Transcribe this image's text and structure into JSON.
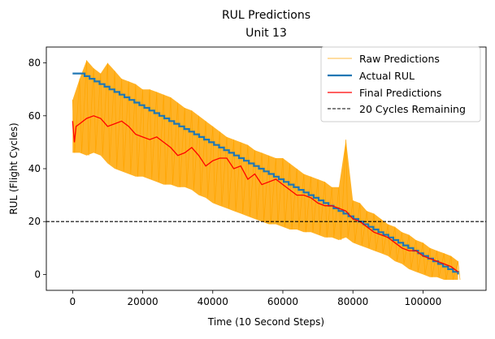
{
  "chart_data": {
    "type": "line",
    "title": "RUL Predictions",
    "subtitle": "Unit 13",
    "xlabel": "Time (10 Second Steps)",
    "ylabel": "RUL (Flight Cycles)",
    "xlim": [
      -7500,
      118000
    ],
    "ylim": [
      -6,
      86
    ],
    "xticks": [
      0,
      20000,
      40000,
      60000,
      80000,
      100000
    ],
    "xtick_labels": [
      "0",
      "20000",
      "40000",
      "60000",
      "80000",
      "100000"
    ],
    "yticks": [
      0,
      20,
      40,
      60,
      80
    ],
    "ytick_labels": [
      "0",
      "20",
      "40",
      "60",
      "80"
    ],
    "grid": false,
    "legend_position": "top-right",
    "threshold": {
      "name": "20 Cycles Remaining",
      "y": 20,
      "color": "#000000",
      "style": "dashed"
    },
    "series": [
      {
        "name": "Raw Predictions",
        "color": "#ffa500",
        "x": [
          0,
          2000,
          4000,
          6000,
          8000,
          10000,
          12000,
          14000,
          16000,
          18000,
          20000,
          22000,
          24000,
          26000,
          28000,
          30000,
          32000,
          34000,
          36000,
          38000,
          40000,
          42000,
          44000,
          46000,
          48000,
          50000,
          52000,
          54000,
          56000,
          58000,
          60000,
          62000,
          64000,
          66000,
          68000,
          70000,
          72000,
          74000,
          76000,
          78000,
          80000,
          82000,
          84000,
          86000,
          88000,
          90000,
          92000,
          94000,
          96000,
          98000,
          100000,
          102000,
          104000,
          106000,
          108000,
          110000
        ],
        "upper": [
          66,
          74,
          81,
          78,
          76,
          80,
          77,
          74,
          73,
          72,
          70,
          70,
          69,
          68,
          67,
          65,
          63,
          62,
          60,
          58,
          56,
          54,
          52,
          51,
          50,
          49,
          47,
          46,
          45,
          44,
          44,
          42,
          40,
          38,
          37,
          36,
          35,
          33,
          33,
          51,
          28,
          27,
          24,
          23,
          21,
          19,
          18,
          16,
          15,
          13,
          12,
          10,
          9,
          8,
          7,
          5
        ],
        "lower": [
          46,
          46,
          45,
          46,
          45,
          42,
          40,
          39,
          38,
          37,
          37,
          36,
          35,
          34,
          34,
          33,
          33,
          32,
          30,
          29,
          27,
          26,
          25,
          24,
          23,
          22,
          21,
          20,
          19,
          19,
          18,
          17,
          17,
          16,
          16,
          15,
          14,
          14,
          13,
          14,
          12,
          11,
          10,
          9,
          8,
          7,
          5,
          4,
          2,
          1,
          0,
          -1,
          -1,
          -2,
          -2,
          -2
        ]
      },
      {
        "name": "Actual RUL",
        "color": "#1f77b4",
        "x": [
          0,
          2000,
          110000
        ],
        "values": [
          76,
          76,
          0
        ]
      },
      {
        "name": "Final Predictions",
        "color": "#ff0000",
        "x": [
          0,
          500,
          1000,
          2000,
          4000,
          6000,
          8000,
          10000,
          12000,
          14000,
          16000,
          18000,
          20000,
          22000,
          24000,
          26000,
          28000,
          30000,
          32000,
          34000,
          36000,
          38000,
          40000,
          42000,
          44000,
          46000,
          48000,
          50000,
          52000,
          54000,
          56000,
          58000,
          60000,
          62000,
          64000,
          66000,
          68000,
          70000,
          72000,
          74000,
          76000,
          78000,
          80000,
          82000,
          84000,
          86000,
          88000,
          90000,
          92000,
          94000,
          96000,
          98000,
          100000,
          102000,
          104000,
          106000,
          108000,
          110000
        ],
        "values": [
          58,
          50,
          56,
          57,
          59,
          60,
          59,
          56,
          57,
          58,
          56,
          53,
          52,
          51,
          52,
          50,
          48,
          45,
          46,
          48,
          45,
          41,
          43,
          44,
          44,
          40,
          41,
          36,
          38,
          34,
          35,
          36,
          34,
          32,
          30,
          30,
          29,
          27,
          26,
          26,
          25,
          24,
          21,
          20,
          18,
          16,
          15,
          14,
          12,
          10,
          9,
          9,
          7,
          6,
          5,
          4,
          3,
          1
        ]
      }
    ]
  }
}
